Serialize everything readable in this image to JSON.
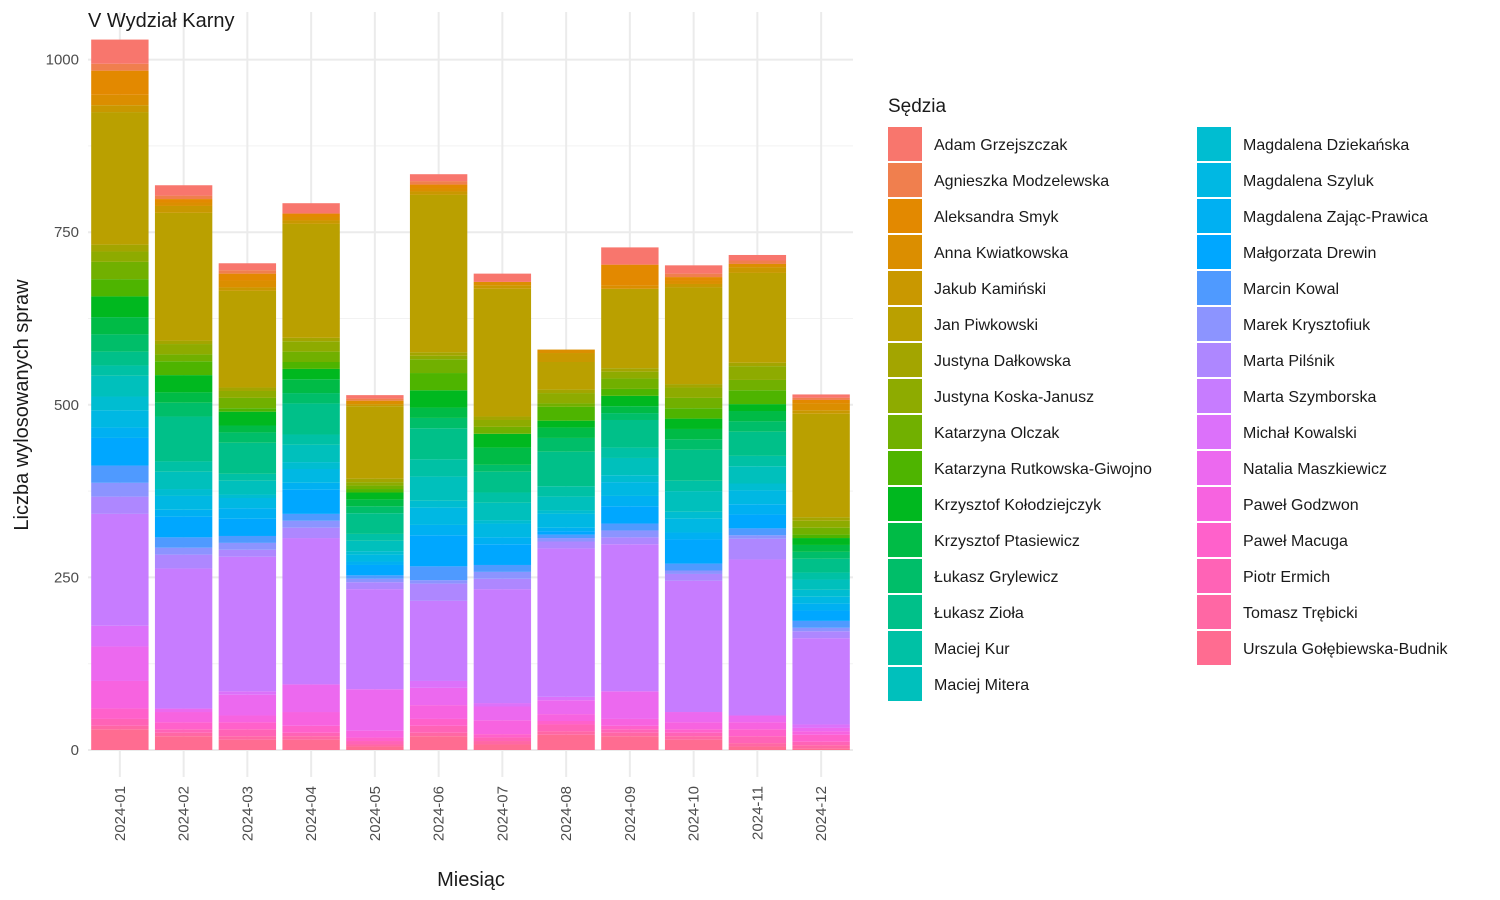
{
  "chart_data": {
    "type": "bar",
    "stacked": true,
    "title": "V Wydział Karny",
    "xlabel": "Miesiąc",
    "ylabel": "Liczba wylosowanych spraw",
    "ylim": [
      0,
      1050
    ],
    "yticks": [
      0,
      250,
      500,
      750,
      1000
    ],
    "grid": true,
    "legend_title": "Sędzia",
    "legend_position": "right",
    "categories": [
      "2024-01",
      "2024-02",
      "2024-03",
      "2024-04",
      "2024-05",
      "2024-06",
      "2024-07",
      "2024-08",
      "2024-09",
      "2024-10",
      "2024-11",
      "2024-12"
    ],
    "series": [
      {
        "name": "Adam Grzejszczak",
        "color": "#F8766D",
        "values": [
          35,
          15,
          10,
          15,
          5,
          10,
          12,
          0,
          25,
          12,
          8,
          5
        ]
      },
      {
        "name": "Agnieszka Modzelewska",
        "color": "#F07F4E",
        "values": [
          10,
          5,
          5,
          0,
          3,
          5,
          0,
          0,
          0,
          5,
          5,
          3
        ]
      },
      {
        "name": "Aleksandra Smyk",
        "color": "#E38900",
        "values": [
          35,
          5,
          10,
          5,
          0,
          5,
          0,
          0,
          30,
          5,
          0,
          5
        ]
      },
      {
        "name": "Anna Kwiatkowska",
        "color": "#DB8E00",
        "values": [
          15,
          5,
          10,
          5,
          5,
          5,
          5,
          5,
          5,
          5,
          5,
          10
        ]
      },
      {
        "name": "Jakub Kamiński",
        "color": "#C99800",
        "values": [
          10,
          10,
          5,
          5,
          3,
          5,
          5,
          13,
          0,
          5,
          8,
          5
        ]
      },
      {
        "name": "Jan Piwkowski",
        "color": "#BAA000",
        "values": [
          192,
          185,
          140,
          165,
          105,
          228,
          185,
          40,
          115,
          140,
          130,
          150
        ]
      },
      {
        "name": "Justyna Dałkowska",
        "color": "#A3A500",
        "values": [
          10,
          5,
          5,
          5,
          5,
          5,
          5,
          5,
          5,
          5,
          5,
          5
        ]
      },
      {
        "name": "Justyna Koska-Janusz",
        "color": "#8EAB00",
        "values": [
          15,
          15,
          10,
          15,
          5,
          5,
          10,
          15,
          10,
          15,
          20,
          10
        ]
      },
      {
        "name": "Katarzyna Olczak",
        "color": "#71B000",
        "values": [
          25,
          10,
          15,
          15,
          5,
          20,
          10,
          5,
          15,
          15,
          15,
          10
        ]
      },
      {
        "name": "Katarzyna Rutkowska-Giwojno",
        "color": "#4EB400",
        "values": [
          25,
          20,
          5,
          10,
          5,
          25,
          0,
          20,
          10,
          15,
          20,
          5
        ]
      },
      {
        "name": "Krzysztof Kołodziejczyk",
        "color": "#00B81F",
        "values": [
          30,
          25,
          20,
          15,
          10,
          25,
          20,
          10,
          15,
          15,
          10,
          10
        ]
      },
      {
        "name": "Krzysztof Ptasiewicz",
        "color": "#00BB46",
        "values": [
          25,
          15,
          10,
          20,
          10,
          15,
          25,
          15,
          10,
          15,
          15,
          10
        ]
      },
      {
        "name": "Łukasz Grylewicz",
        "color": "#00BE69",
        "values": [
          25,
          20,
          15,
          15,
          10,
          15,
          10,
          20,
          10,
          15,
          15,
          10
        ]
      },
      {
        "name": "Łukasz Zioła",
        "color": "#00C089",
        "values": [
          20,
          65,
          45,
          45,
          30,
          45,
          30,
          50,
          40,
          45,
          35,
          20
        ]
      },
      {
        "name": "Maciej Kur",
        "color": "#00C1A5",
        "values": [
          15,
          15,
          10,
          15,
          10,
          25,
          15,
          15,
          15,
          15,
          15,
          10
        ]
      },
      {
        "name": "Maciej Mitera",
        "color": "#00C0BC",
        "values": [
          30,
          25,
          20,
          25,
          15,
          35,
          25,
          20,
          25,
          30,
          25,
          15
        ]
      },
      {
        "name": "Magdalena Dziekańska",
        "color": "#00BDD1",
        "values": [
          20,
          10,
          5,
          10,
          5,
          10,
          5,
          5,
          10,
          10,
          10,
          10
        ]
      },
      {
        "name": "Magdalena Szyluk",
        "color": "#00B8E3",
        "values": [
          25,
          20,
          15,
          20,
          10,
          25,
          20,
          20,
          20,
          20,
          20,
          10
        ]
      },
      {
        "name": "Magdalena Zając-Prawica",
        "color": "#00B0F2",
        "values": [
          15,
          10,
          15,
          10,
          5,
          15,
          10,
          5,
          15,
          10,
          15,
          10
        ]
      },
      {
        "name": "Małgorzata Drewin",
        "color": "#00A7FF",
        "values": [
          40,
          30,
          25,
          35,
          15,
          45,
          30,
          5,
          25,
          35,
          20,
          15
        ]
      },
      {
        "name": "Marcin Kowal",
        "color": "#4F9AFF",
        "values": [
          25,
          15,
          10,
          10,
          5,
          20,
          10,
          5,
          10,
          10,
          10,
          10
        ]
      },
      {
        "name": "Marek Krysztofiuk",
        "color": "#8C94FF",
        "values": [
          20,
          10,
          10,
          10,
          5,
          5,
          10,
          5,
          10,
          5,
          5,
          5
        ]
      },
      {
        "name": "Marta Pilśnik",
        "color": "#AE87FF",
        "values": [
          25,
          20,
          10,
          15,
          10,
          25,
          15,
          10,
          10,
          10,
          30,
          10
        ]
      },
      {
        "name": "Marta Szymborska",
        "color": "#C77CFF",
        "values": [
          162,
          203,
          195,
          212,
          145,
          116,
          165,
          215,
          213,
          190,
          226,
          125
        ]
      },
      {
        "name": "Michał Kowalski",
        "color": "#DC71FA",
        "values": [
          30,
          0,
          5,
          0,
          0,
          10,
          5,
          5,
          0,
          0,
          0,
          5
        ]
      },
      {
        "name": "Natalia Maszkiewicz",
        "color": "#EC69EF",
        "values": [
          50,
          5,
          30,
          40,
          60,
          25,
          20,
          20,
          40,
          15,
          10,
          5
        ]
      },
      {
        "name": "Paweł Godzwon",
        "color": "#F763E0",
        "values": [
          40,
          15,
          10,
          20,
          10,
          20,
          20,
          10,
          10,
          10,
          10,
          5
        ]
      },
      {
        "name": "Paweł Macuga",
        "color": "#FF61CB",
        "values": [
          15,
          10,
          10,
          10,
          5,
          10,
          5,
          5,
          5,
          5,
          10,
          10
        ]
      },
      {
        "name": "Piotr Ermich",
        "color": "#FF63B6",
        "values": [
          10,
          5,
          10,
          5,
          5,
          10,
          5,
          10,
          5,
          5,
          10,
          5
        ]
      },
      {
        "name": "Tomasz Trębicki",
        "color": "#FF67A4",
        "values": [
          5,
          5,
          5,
          5,
          3,
          5,
          5,
          5,
          5,
          5,
          5,
          5
        ]
      },
      {
        "name": "Urszula Gołębiewska-Budnik",
        "color": "#FF6C91",
        "values": [
          30,
          20,
          15,
          15,
          5,
          20,
          8,
          22,
          20,
          15,
          5,
          2
        ]
      }
    ]
  }
}
